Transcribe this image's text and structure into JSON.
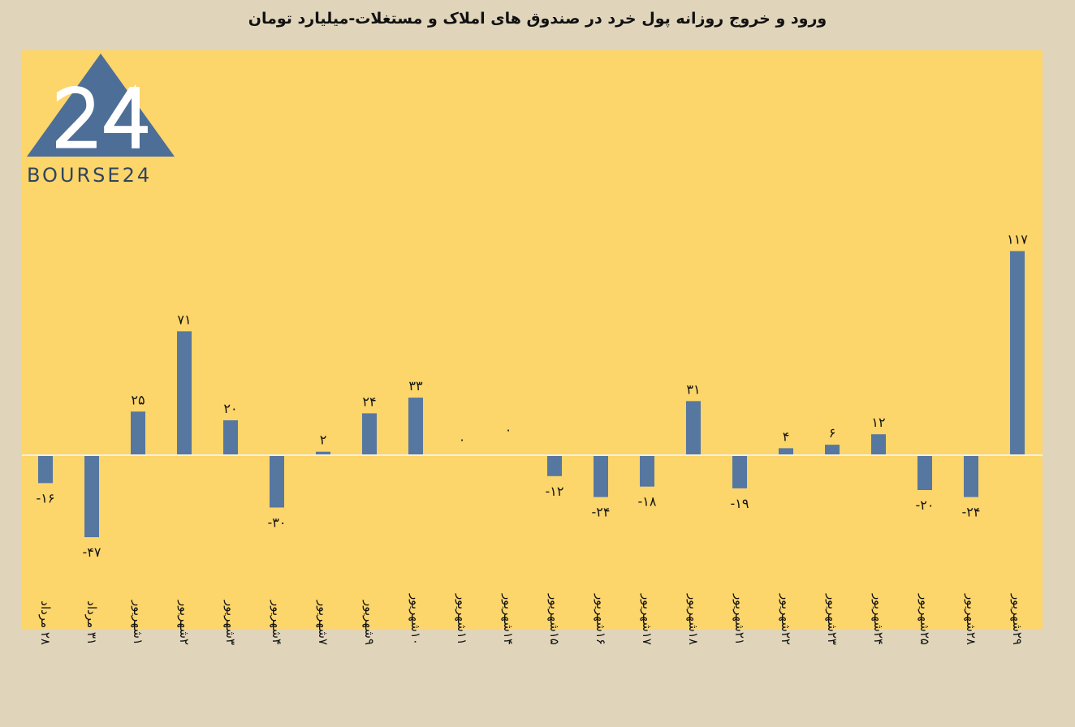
{
  "chart_data": {
    "type": "bar",
    "title": "ورود و خروج روزانه پول خرد در صندوق های املاک و مستغلات-میلیارد تومان",
    "xlabel": "",
    "ylabel": "",
    "ylim": [
      -55,
      123
    ],
    "grid": false,
    "legend": "none",
    "categories": [
      "۲۸ مرداد",
      "۳۱ مرداد",
      "۱شهریور",
      "۲شهریور",
      "۳شهریور",
      "۴شهریور",
      "۷شهریور",
      "۹شهریور",
      "۱۰شهریور",
      "۱۱شهریور",
      "۱۴شهریور",
      "۱۵شهریور",
      "۱۶شهریور",
      "۱۷شهریور",
      "۱۸شهریور",
      "۲۱شهریور",
      "۲۲شهریور",
      "۲۳شهریور",
      "۲۴شهریور",
      "۲۵شهریور",
      "۲۸شهریور",
      "۲۹شهریور"
    ],
    "values": [
      -16,
      -47,
      25,
      71,
      20,
      -30,
      2,
      24,
      33,
      0,
      0,
      -12,
      -24,
      -18,
      31,
      -19,
      4,
      6,
      12,
      -20,
      -24,
      117
    ],
    "value_labels": [
      "-۱۶",
      "-۴۷",
      "۲۵",
      "۷۱",
      "۲۰",
      "-۳۰",
      "۲",
      "۲۴",
      "۳۳",
      "۰",
      "۰",
      "-۱۲",
      "-۲۴",
      "-۱۸",
      "۳۱",
      "-۱۹",
      "۴",
      "۶",
      "۱۲",
      "-۲۰",
      "-۲۴",
      "۱۱۷"
    ]
  },
  "logo": {
    "text": "BOURSE24",
    "numeral": "24"
  },
  "colors": {
    "background": "#e0d5bb",
    "plot_area": "#fcd56b",
    "bar": "#5677a0",
    "zero_line": "#f3f0e6",
    "logo": "#4d6f97",
    "logo_dark": "#2f4460"
  }
}
